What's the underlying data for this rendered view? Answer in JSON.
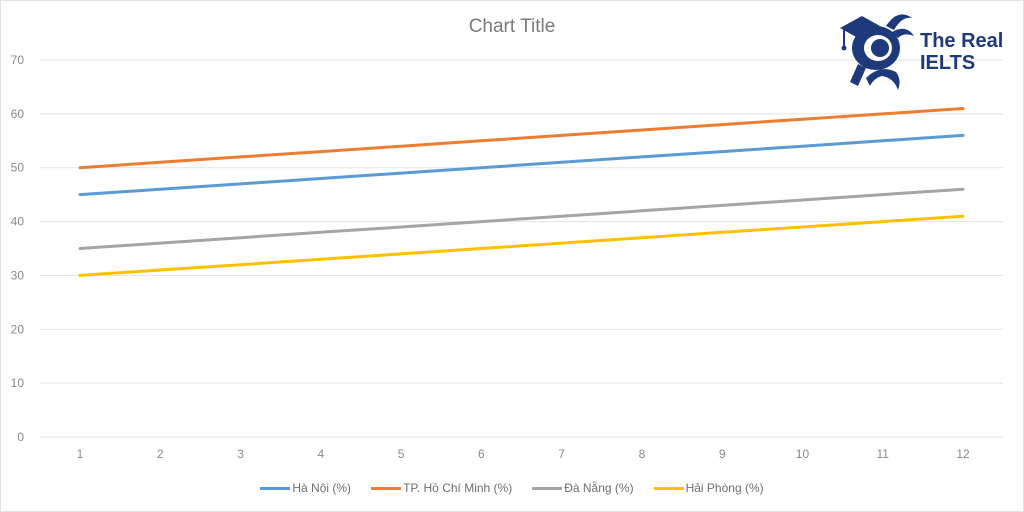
{
  "chart_data": {
    "type": "line",
    "title": "Chart Title",
    "xlabel": "",
    "ylabel": "",
    "x": [
      1,
      2,
      3,
      4,
      5,
      6,
      7,
      8,
      9,
      10,
      11,
      12
    ],
    "categories": [
      "1",
      "2",
      "3",
      "4",
      "5",
      "6",
      "7",
      "8",
      "9",
      "10",
      "11",
      "12"
    ],
    "ylim": [
      0,
      70
    ],
    "yticks": [
      0,
      10,
      20,
      30,
      40,
      50,
      60,
      70
    ],
    "grid": true,
    "legend_position": "bottom",
    "series": [
      {
        "name": "Hà Nội (%)",
        "color": "#5b9bd5",
        "values": [
          45,
          46,
          47,
          48,
          49,
          50,
          51,
          52,
          53,
          54,
          55,
          56
        ]
      },
      {
        "name": "TP. Hồ Chí Minh (%)",
        "color": "#ed7d31",
        "values": [
          50,
          51,
          52,
          53,
          54,
          55,
          56,
          57,
          58,
          59,
          60,
          61
        ]
      },
      {
        "name": "Đà Nẵng (%)",
        "color": "#a5a5a5",
        "values": [
          35,
          36,
          37,
          38,
          39,
          40,
          41,
          42,
          43,
          44,
          45,
          46
        ]
      },
      {
        "name": "Hải Phòng (%)",
        "color": "#ffc000",
        "values": [
          30,
          31,
          32,
          33,
          34,
          35,
          36,
          37,
          38,
          39,
          40,
          41
        ]
      }
    ]
  },
  "logo": {
    "line1": "The Real",
    "line2": "IELTS",
    "color": "#1e3a7a"
  }
}
